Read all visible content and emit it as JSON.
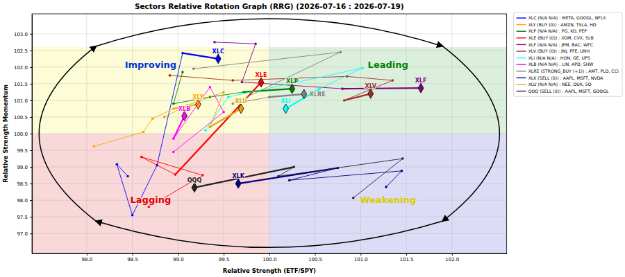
{
  "chart_data": {
    "type": "rrg",
    "title": "Sectors Relative Rotation Graph (RRG) (2026-07-16 : 2026-07-19)",
    "x_label": "Relative Strength (ETF/SPY)",
    "y_label": "Relative Strength Momentum",
    "xlim": [
      97.4,
      102.6
    ],
    "ylim": [
      96.4,
      103.6
    ],
    "xticks": [
      {
        "value": 98,
        "label": "98.0"
      },
      98.5,
      {
        "value": 99,
        "label": "99.0"
      },
      99.5,
      {
        "value": 100,
        "label": "100.0"
      },
      100.5,
      {
        "value": 101,
        "label": "101.0"
      },
      101.5,
      {
        "value": 102,
        "label": "102.0"
      }
    ],
    "yticks": [
      {
        "value": 97,
        "label": "97.0"
      },
      97.5,
      {
        "value": 98,
        "label": "98.0"
      },
      98.5,
      {
        "value": 99,
        "label": "99.0"
      },
      99.5,
      {
        "value": 100,
        "label": "100.0"
      },
      100.5,
      {
        "value": 101,
        "label": "101.0"
      },
      101.5,
      {
        "value": 102,
        "label": "102.0"
      },
      102.5,
      {
        "value": 103,
        "label": "103.0"
      }
    ],
    "grid": true,
    "legend": "right",
    "marker": "diamond",
    "quadrants": [
      {
        "label": "Improving",
        "color": "#fcfcd6",
        "x": [
          97.4,
          100
        ],
        "y": [
          100,
          102.6
        ]
      },
      {
        "label": "Leading",
        "color": "#dcefdc",
        "x": [
          100,
          102.6
        ],
        "y": [
          100,
          102.6
        ]
      },
      {
        "label": "Lagging",
        "color": "#f8d8d8",
        "x": [
          97.4,
          100
        ],
        "y": [
          96.4,
          100
        ]
      },
      {
        "label": "Weakening",
        "color": "#dcdcf6",
        "x": [
          100,
          102.6
        ],
        "y": [
          96.4,
          100
        ]
      }
    ],
    "series": [
      {
        "name": "XLC (N/A N/A) : META, GOOGL, NFLX",
        "label": "XLC",
        "color": "#0000ff",
        "x": [
          98.45,
          98.33,
          98.5,
          98.77,
          99.05,
          99.44
        ],
        "values": [
          98.72,
          99.08,
          97.55,
          99.05,
          102.42,
          102.25
        ]
      },
      {
        "name": "XLY (BUY (0)) : AMZN, TSLA, HD",
        "label": "XLY",
        "color": "#ffa500",
        "x": [
          98.08,
          98.62,
          98.72,
          98.95,
          99.22
        ],
        "values": [
          99.62,
          100.05,
          100.45,
          100.75,
          100.88
        ]
      },
      {
        "name": "XLP (N/A N/A) : PG, KO, PEP",
        "label": "XLP",
        "color": "#008000",
        "x": [
          99.05,
          98.95,
          99.35,
          99.72,
          100.25
        ],
        "values": [
          101.85,
          100.9,
          101.1,
          101.25,
          101.35
        ]
      },
      {
        "name": "XLE (BUY (0)) : XOM, CVX, SLB",
        "label": "XLE",
        "color": "#ff0000",
        "x": [
          98.68,
          99.27,
          98.6,
          98.97,
          99.91
        ],
        "values": [
          97.8,
          98.75,
          99.3,
          98.77,
          101.54
        ]
      },
      {
        "name": "XLF (N/A N/A) : JPM, BAC, WFC",
        "label": "XLF",
        "color": "#800080",
        "x": [
          99.4,
          99.85,
          99.7,
          100.8,
          101.66
        ],
        "values": [
          102.75,
          102.7,
          101.55,
          101.35,
          101.37
        ]
      },
      {
        "name": "XLV (BUY (0)) : JNJ, PFE, UNH",
        "label": "XLV",
        "color": "#a52a2a",
        "x": [
          98.91,
          99.6,
          100.85,
          101.35,
          100.82,
          101.11
        ],
        "values": [
          101.75,
          101.6,
          101.72,
          101.6,
          101.0,
          101.2
        ]
      },
      {
        "name": "XLI (N/A N/A) : HON, GE, UPS",
        "label": "XLI",
        "color": "#00ffff",
        "x": [
          99.3,
          99.55,
          101.02,
          100.55,
          100.18
        ],
        "values": [
          100.1,
          101.1,
          101.97,
          101.35,
          100.75
        ]
      },
      {
        "name": "XLB (N/A N/A) : LIN, APD, SHW",
        "label": "XLB",
        "color": "#ff00ff",
        "x": [
          98.95,
          99.5,
          99.35,
          98.95,
          99.07
        ],
        "values": [
          99.45,
          100.65,
          101.4,
          99.85,
          100.53
        ]
      },
      {
        "name": "XLRE (STRONG_BUY (+1)) : AMT, PLD, CCI",
        "label": "XLRE",
        "color": "#808080",
        "x": [
          99.17,
          100.78,
          99.6,
          100.0,
          100.38
        ],
        "values": [
          101.95,
          102.45,
          100.9,
          101.1,
          101.19
        ]
      },
      {
        "name": "XLK (SELL (0)) : AAPL, MSFT, NVDA",
        "label": "XLK",
        "color": "#000080",
        "x": [
          101.28,
          101.45,
          100.22,
          100.75,
          99.66
        ],
        "values": [
          98.4,
          98.88,
          98.6,
          98.97,
          98.5
        ]
      },
      {
        "name": "XLU (N/A N/A) : NEE, DUK, SO",
        "label": "XLU",
        "color": "#daa520",
        "x": [
          98.85,
          99.1,
          99.5,
          99.35,
          99.69
        ],
        "values": [
          100.5,
          100.85,
          101.25,
          100.2,
          100.75
        ]
      },
      {
        "name": "QQQ (SELL (0)) : AAPL, MSFT, GOOGL",
        "label": "QQQ",
        "color": "#222222",
        "x": [
          100.92,
          101.46,
          100.1,
          100.27,
          99.18
        ],
        "values": [
          98.07,
          99.25,
          98.72,
          99.0,
          98.38
        ]
      }
    ]
  }
}
